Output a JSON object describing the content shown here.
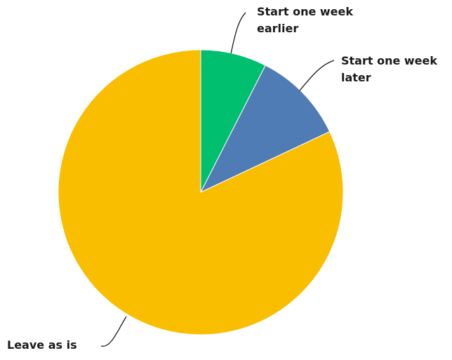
{
  "chart_data": {
    "type": "pie",
    "title": "",
    "start_angle_deg": 0,
    "direction": "clockwise",
    "slices": [
      {
        "label_lines": [
          "Start one week",
          "earlier"
        ],
        "value": 7.5,
        "color": "#00bf6f"
      },
      {
        "label_lines": [
          "Start one week",
          "later"
        ],
        "value": 10.5,
        "color": "#507cb6"
      },
      {
        "label_lines": [
          "Leave as is"
        ],
        "value": 82,
        "color": "#f9be00"
      }
    ]
  }
}
